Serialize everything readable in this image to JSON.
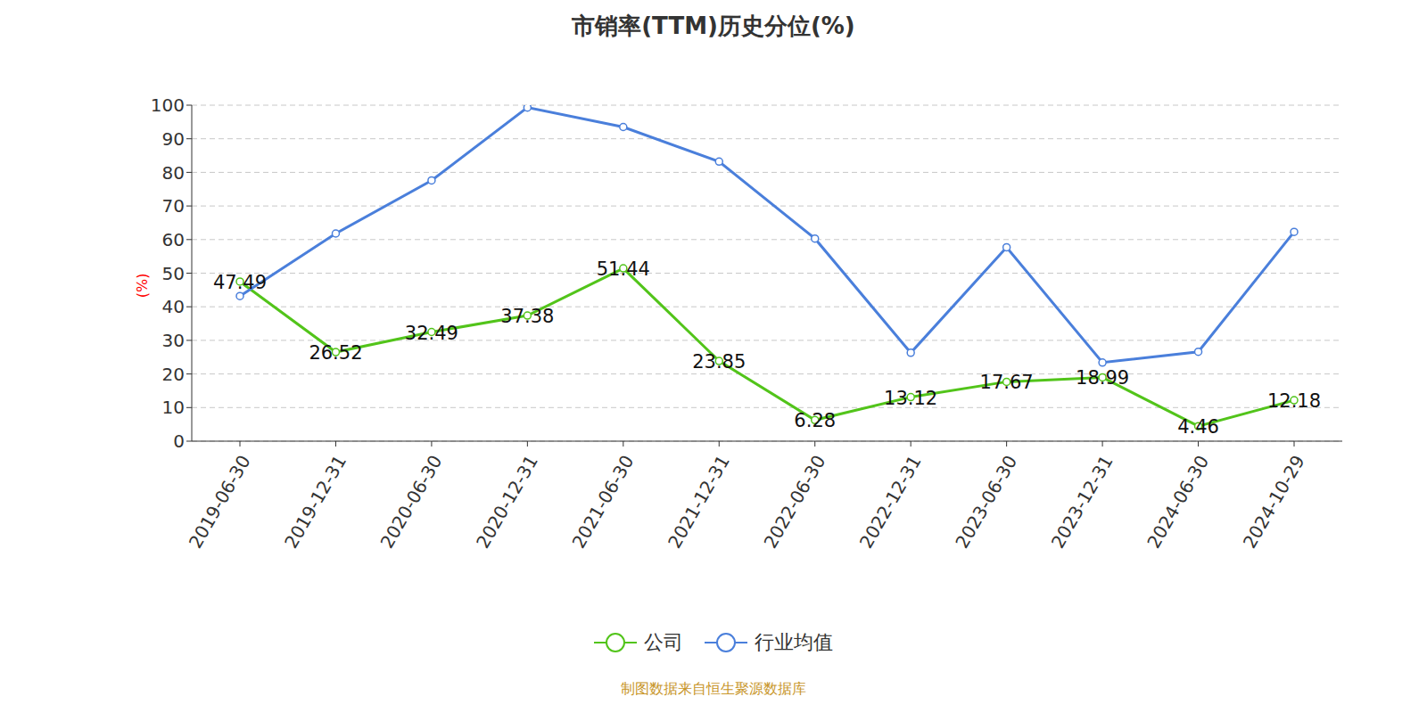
{
  "chart_data": {
    "type": "line",
    "title": "市销率(TTM)历史分位(%)",
    "ylabel": "(%)",
    "source": "制图数据来自恒生聚源数据库",
    "categories": [
      "2019-06-30",
      "2019-12-31",
      "2020-06-30",
      "2020-12-31",
      "2021-06-30",
      "2021-12-31",
      "2022-06-30",
      "2022-12-31",
      "2023-06-30",
      "2023-12-31",
      "2024-06-30",
      "2024-10-29"
    ],
    "series": [
      {
        "name": "公司",
        "color": "#52c41a",
        "marker": "circle",
        "data_labels": true,
        "values": [
          47.49,
          26.52,
          32.49,
          37.38,
          51.44,
          23.85,
          6.28,
          13.12,
          17.67,
          18.99,
          4.46,
          12.18
        ]
      },
      {
        "name": "行业均值",
        "color": "#4a7fdb",
        "marker": "circle",
        "values": [
          43.2,
          61.8,
          77.6,
          99.3,
          93.5,
          83.2,
          60.3,
          26.3,
          57.7,
          23.4,
          26.6,
          62.3
        ]
      }
    ],
    "ylim": [
      0,
      100
    ],
    "yticks": [
      0,
      10,
      20,
      30,
      40,
      50,
      60,
      70,
      80,
      90,
      100
    ],
    "grid": true
  }
}
